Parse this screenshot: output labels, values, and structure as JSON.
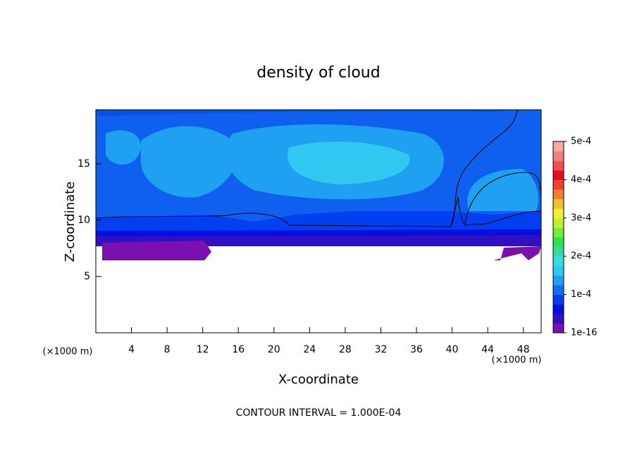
{
  "chart_data": {
    "type": "contour",
    "title": "density of cloud",
    "x_label": "X-coordinate",
    "y_label": "Z-coordinate",
    "x_unit": "(×1000 m)",
    "y_unit": "(×1000 m)",
    "footer": "CONTOUR INTERVAL = 1.000E-04",
    "xlim": [
      0,
      50
    ],
    "xticks": [
      4,
      8,
      12,
      16,
      20,
      24,
      28,
      32,
      36,
      40,
      44,
      48
    ],
    "ylim": [
      0,
      19.8
    ],
    "yticks": [
      5,
      10,
      15
    ],
    "clim": [
      1e-16,
      0.0005
    ],
    "cticks": [
      {
        "value": 1e-16,
        "label": "1e-16"
      },
      {
        "value": 0.0001,
        "label": "1e-4"
      },
      {
        "value": 0.0002,
        "label": "2e-4"
      },
      {
        "value": 0.0003,
        "label": "3e-4"
      },
      {
        "value": 0.0004,
        "label": "4e-4"
      },
      {
        "value": 0.0005,
        "label": "5e-4"
      }
    ],
    "colormap": [
      "#7a10b0",
      "#3010c0",
      "#0010e0",
      "#0040f0",
      "#1070f0",
      "#20a0f0",
      "#30c8f0",
      "#30e0e0",
      "#30e0a0",
      "#30e050",
      "#70f030",
      "#c0f030",
      "#f0f030",
      "#f0c030",
      "#f08030",
      "#f04030",
      "#e01020",
      "#f05050",
      "#f08080",
      "#f8a8a8"
    ]
  }
}
